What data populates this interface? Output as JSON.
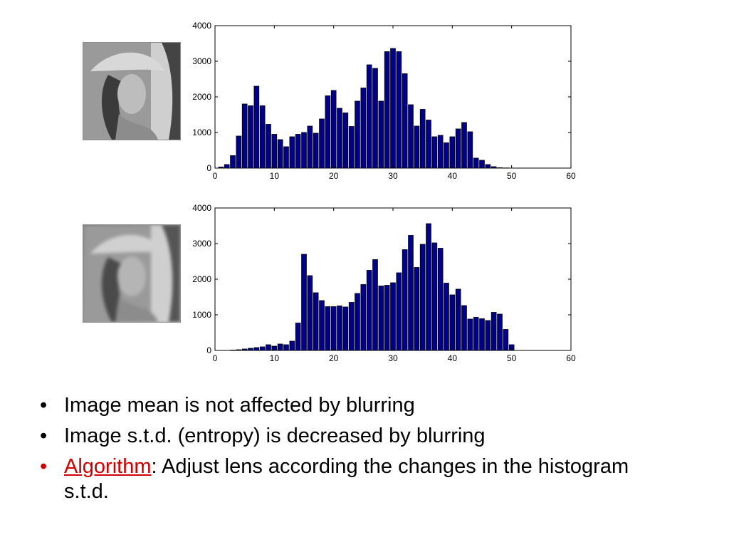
{
  "bullets": {
    "item1": "Image mean is not affected by blurring",
    "item2": "Image s.t.d. (entropy) is decreased by blurring",
    "item3_link": "Algorithm",
    "item3_rest": ": Adjust lens according the changes in the histogram s.t.d.",
    "marker": "•"
  },
  "colors": {
    "bar_fill": "#00008b",
    "bar_stroke": "#000000",
    "accent_red": "#cc0000"
  },
  "chart_data": [
    {
      "type": "bar",
      "title": "",
      "xlabel": "",
      "ylabel": "",
      "xlim": [
        0,
        60
      ],
      "ylim": [
        0,
        4000
      ],
      "xticks": [
        "0",
        "10",
        "20",
        "30",
        "40",
        "50",
        "60"
      ],
      "yticks": [
        "0",
        "1000",
        "2000",
        "3000",
        "4000"
      ],
      "x": [
        1,
        2,
        3,
        4,
        5,
        6,
        7,
        8,
        9,
        10,
        11,
        12,
        13,
        14,
        15,
        16,
        17,
        18,
        19,
        20,
        21,
        22,
        23,
        24,
        25,
        26,
        27,
        28,
        29,
        30,
        31,
        32,
        33,
        34,
        35,
        36,
        37,
        38,
        39,
        40,
        41,
        42,
        43,
        44,
        45,
        46,
        47,
        48,
        49,
        50
      ],
      "values": [
        30,
        100,
        350,
        900,
        1800,
        1750,
        2300,
        1750,
        1230,
        950,
        800,
        600,
        880,
        950,
        1000,
        1180,
        980,
        1380,
        2030,
        2180,
        1680,
        1550,
        1170,
        1880,
        2250,
        2900,
        2800,
        1880,
        3270,
        3360,
        3270,
        2650,
        1780,
        1180,
        1650,
        1350,
        880,
        920,
        710,
        880,
        1100,
        1280,
        1020,
        280,
        220,
        100,
        40,
        10,
        5,
        0
      ],
      "grid": false
    },
    {
      "type": "bar",
      "title": "",
      "xlabel": "",
      "ylabel": "",
      "xlim": [
        0,
        60
      ],
      "ylim": [
        0,
        4000
      ],
      "xticks": [
        "0",
        "10",
        "20",
        "30",
        "40",
        "50",
        "60"
      ],
      "yticks": [
        "0",
        "1000",
        "2000",
        "3000",
        "4000"
      ],
      "x": [
        1,
        2,
        3,
        4,
        5,
        6,
        7,
        8,
        9,
        10,
        11,
        12,
        13,
        14,
        15,
        16,
        17,
        18,
        19,
        20,
        21,
        22,
        23,
        24,
        25,
        26,
        27,
        28,
        29,
        30,
        31,
        32,
        33,
        34,
        35,
        36,
        37,
        38,
        39,
        40,
        41,
        42,
        43,
        44,
        45,
        46,
        47,
        48,
        49,
        50
      ],
      "values": [
        0,
        0,
        10,
        20,
        40,
        60,
        80,
        100,
        160,
        120,
        180,
        160,
        260,
        770,
        2700,
        2100,
        1620,
        1400,
        1230,
        1230,
        1250,
        1220,
        1350,
        1600,
        1850,
        2250,
        2550,
        1810,
        1830,
        1900,
        2180,
        2830,
        3230,
        2330,
        2980,
        3560,
        3020,
        2870,
        1890,
        1560,
        1720,
        1260,
        880,
        930,
        890,
        840,
        1070,
        1020,
        590,
        160
      ],
      "grid": false
    }
  ]
}
